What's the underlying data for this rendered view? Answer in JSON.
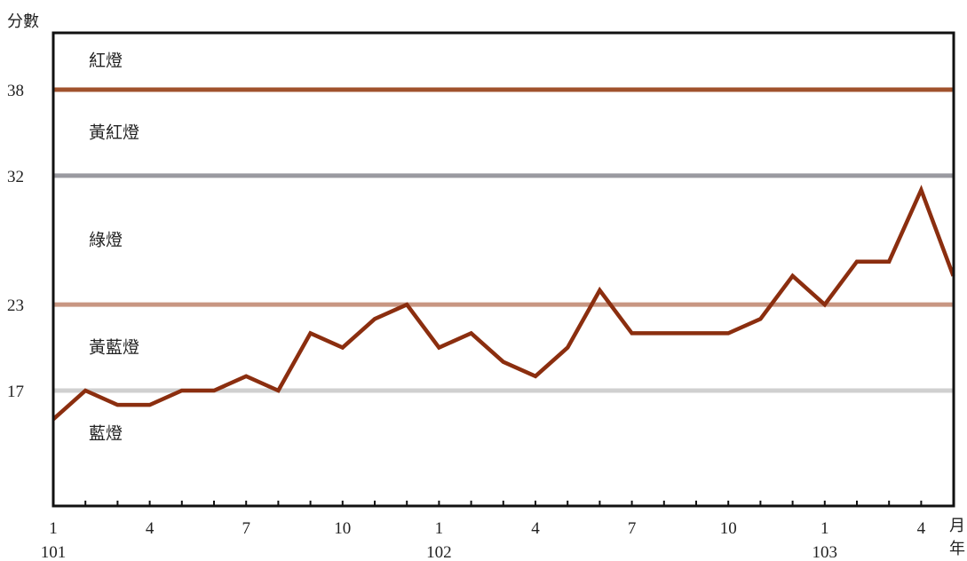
{
  "chart_data": {
    "type": "line",
    "ylabel": "分數",
    "x_unit_month": "月",
    "x_unit_year": "年",
    "ylim": [
      11,
      42
    ],
    "x_months": [
      1,
      2,
      3,
      4,
      5,
      6,
      7,
      8,
      9,
      10,
      11,
      12,
      1,
      2,
      3,
      4,
      5,
      6,
      7,
      8,
      9,
      10,
      11,
      12,
      1,
      2,
      3,
      4,
      5
    ],
    "x_month_ticks": [
      "1",
      "",
      "",
      "4",
      "",
      "",
      "7",
      "",
      "",
      "10",
      "",
      "",
      "1",
      "",
      "",
      "4",
      "",
      "",
      "7",
      "",
      "",
      "10",
      "",
      "",
      "1",
      "",
      "",
      "4",
      ""
    ],
    "x_year_labels": [
      {
        "index": 0,
        "label": "101"
      },
      {
        "index": 12,
        "label": "102"
      },
      {
        "index": 24,
        "label": "103"
      }
    ],
    "y_ticks": [
      38,
      32,
      23,
      17
    ],
    "thresholds": [
      {
        "value": 38,
        "color": "#a0522d"
      },
      {
        "value": 32,
        "color": "#9a9aa0"
      },
      {
        "value": 23,
        "color": "#c89682"
      },
      {
        "value": 17,
        "color": "#d0d0d0"
      }
    ],
    "zones": [
      {
        "label": "紅燈",
        "y": 40
      },
      {
        "label": "黃紅燈",
        "y": 35
      },
      {
        "label": "綠燈",
        "y": 27.5
      },
      {
        "label": "黃藍燈",
        "y": 20
      },
      {
        "label": "藍燈",
        "y": 14
      }
    ],
    "series": [
      {
        "color": "#8b2e0f",
        "values": [
          15,
          17,
          16,
          16,
          17,
          17,
          18,
          17,
          21,
          20,
          22,
          23,
          20,
          21,
          19,
          18,
          20,
          24,
          21,
          21,
          21,
          21,
          22,
          25,
          23,
          26,
          26,
          31,
          25
        ]
      }
    ]
  }
}
